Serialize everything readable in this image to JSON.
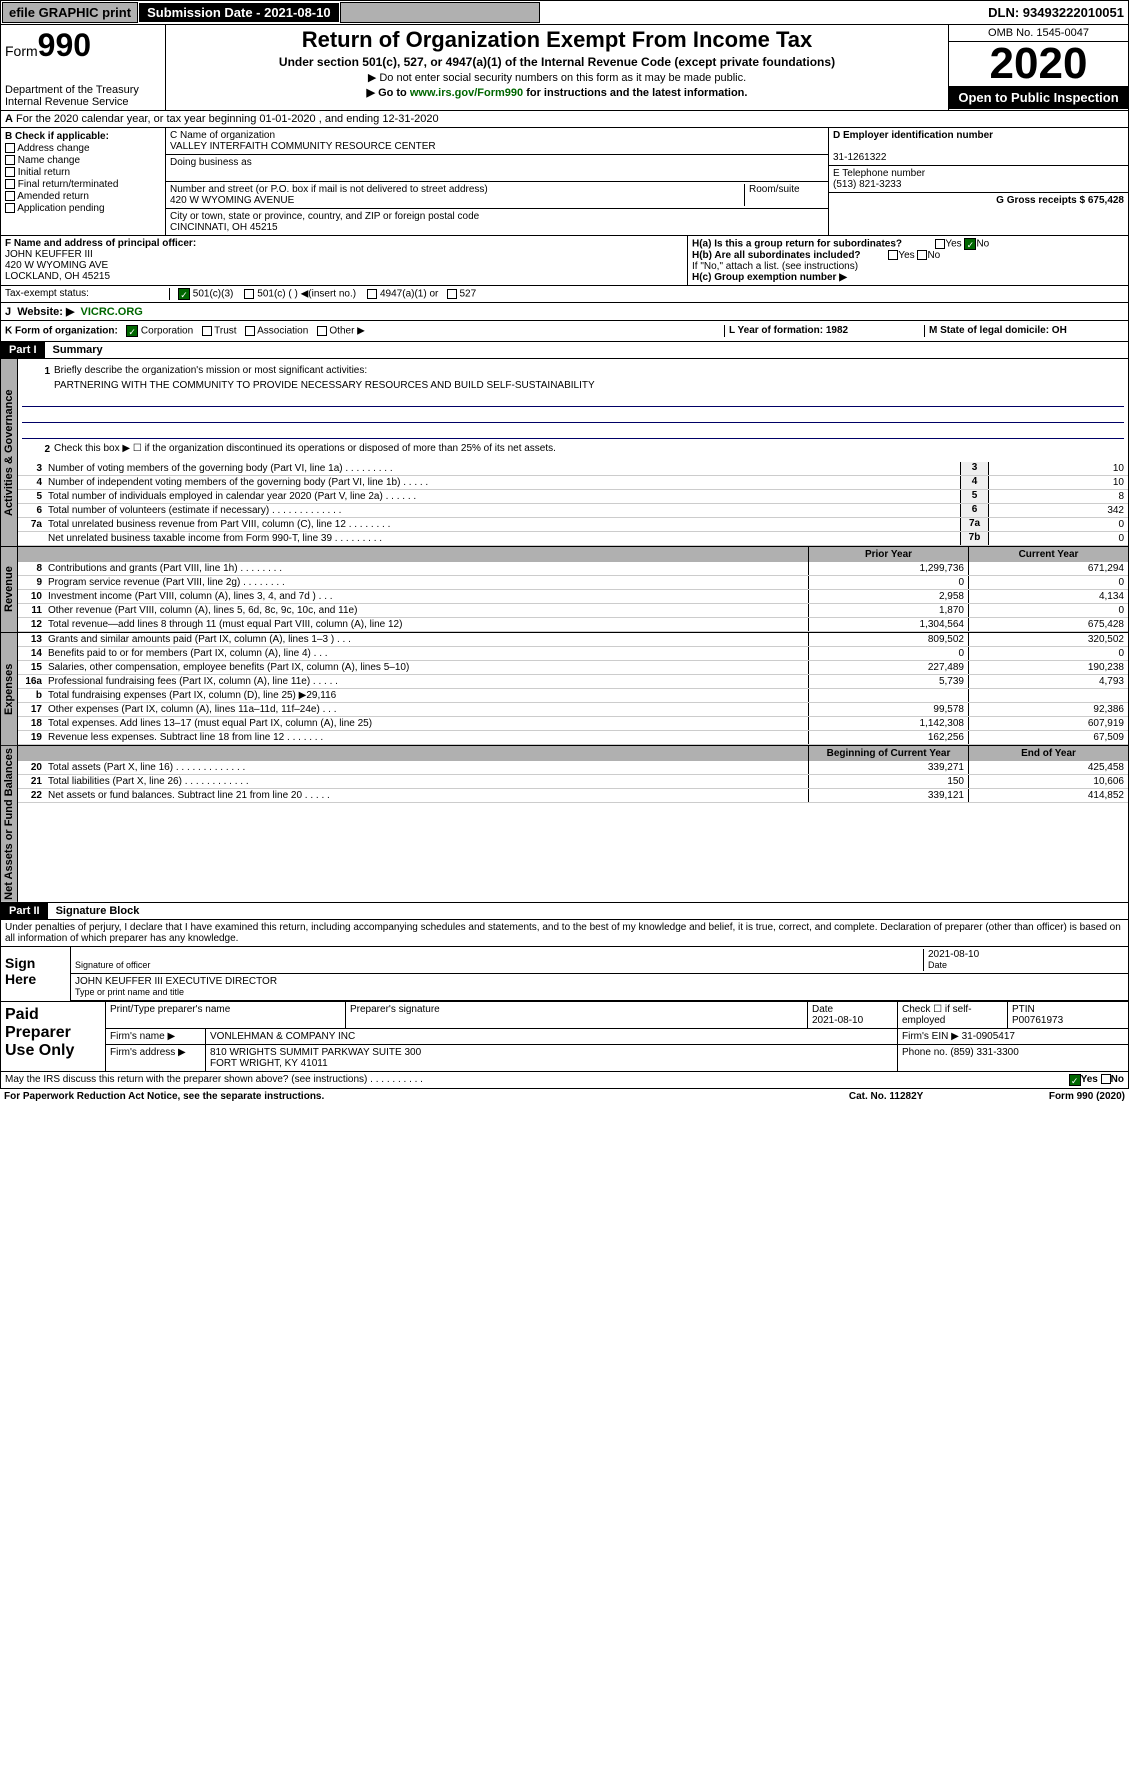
{
  "topbar": {
    "efile": "efile GRAPHIC print",
    "subdate_label": "Submission Date - 2021-08-10",
    "dln": "DLN: 93493222010051"
  },
  "header": {
    "form_label": "Form",
    "form_no": "990",
    "dept": "Department of the Treasury Internal Revenue Service",
    "title": "Return of Organization Exempt From Income Tax",
    "sub": "Under section 501(c), 527, or 4947(a)(1) of the Internal Revenue Code (except private foundations)",
    "note1": "▶ Do not enter social security numbers on this form as it may be made public.",
    "note2_pre": "▶ Go to ",
    "note2_link": "www.irs.gov/Form990",
    "note2_post": " for instructions and the latest information.",
    "omb": "OMB No. 1545-0047",
    "year": "2020",
    "open": "Open to Public Inspection"
  },
  "rowA": "For the 2020 calendar year, or tax year beginning 01-01-2020   , and ending 12-31-2020",
  "colB": {
    "label": "B Check if applicable:",
    "opts": [
      "Address change",
      "Name change",
      "Initial return",
      "Final return/terminated",
      "Amended return",
      "Application pending"
    ]
  },
  "colC": {
    "name_lbl": "C Name of organization",
    "name": "VALLEY INTERFAITH COMMUNITY RESOURCE CENTER",
    "dba_lbl": "Doing business as",
    "addr_lbl": "Number and street (or P.O. box if mail is not delivered to street address)",
    "room_lbl": "Room/suite",
    "addr": "420 W WYOMING AVENUE",
    "city_lbl": "City or town, state or province, country, and ZIP or foreign postal code",
    "city": "CINCINNATI, OH  45215"
  },
  "colDE": {
    "d_lbl": "D Employer identification number",
    "ein": "31-1261322",
    "e_lbl": "E Telephone number",
    "phone": "(513) 821-3233",
    "g_lbl": "G Gross receipts $ 675,428"
  },
  "rowF": {
    "lbl": "F  Name and address of principal officer:",
    "l1": "JOHN KEUFFER III",
    "l2": "420 W WYOMING AVE",
    "l3": "LOCKLAND, OH  45215"
  },
  "rowH": {
    "ha": "H(a)  Is this a group return for subordinates?",
    "hb": "H(b)  Are all subordinates included?",
    "hnote": "If \"No,\" attach a list. (see instructions)",
    "hc": "H(c)  Group exemption number ▶"
  },
  "rowI": {
    "lbl": "Tax-exempt status:",
    "o1": "501(c)(3)",
    "o2": "501(c) (  ) ◀(insert no.)",
    "o3": "4947(a)(1) or",
    "o4": "527"
  },
  "rowJ": {
    "lbl": "Website: ▶",
    "val": "VICRC.ORG"
  },
  "rowK": {
    "lbl": "K Form of organization:",
    "corp": "Corporation",
    "trust": "Trust",
    "assoc": "Association",
    "other": "Other ▶"
  },
  "rowL": "L Year of formation: 1982",
  "rowM": "M State of legal domicile: OH",
  "part1": {
    "hdr": "Part I",
    "title": "Summary",
    "l1_lbl": "Briefly describe the organization's mission or most significant activities:",
    "l1_txt": "PARTNERING WITH THE COMMUNITY TO PROVIDE NECESSARY RESOURCES AND BUILD SELF-SUSTAINABILITY",
    "l2": "Check this box ▶ ☐  if the organization discontinued its operations or disposed of more than 25% of its net assets.",
    "lines_gov": [
      {
        "n": "3",
        "t": "Number of voting members of the governing body (Part VI, line 1a)  .  .  .  .  .  .  .  .  .",
        "b": "3",
        "v": "10"
      },
      {
        "n": "4",
        "t": "Number of independent voting members of the governing body (Part VI, line 1b)  .  .  .  .  .",
        "b": "4",
        "v": "10"
      },
      {
        "n": "5",
        "t": "Total number of individuals employed in calendar year 2020 (Part V, line 2a)  .  .  .  .  .  .",
        "b": "5",
        "v": "8"
      },
      {
        "n": "6",
        "t": "Total number of volunteers (estimate if necessary)  .  .  .  .  .  .  .  .  .  .  .  .  .",
        "b": "6",
        "v": "342"
      },
      {
        "n": "7a",
        "t": "Total unrelated business revenue from Part VIII, column (C), line 12  .  .  .  .  .  .  .  .",
        "b": "7a",
        "v": "0"
      },
      {
        "n": "",
        "t": "Net unrelated business taxable income from Form 990-T, line 39  .  .  .  .  .  .  .  .  .",
        "b": "7b",
        "v": "0"
      }
    ],
    "py_hdr": "Prior Year",
    "cy_hdr": "Current Year",
    "rev": [
      {
        "n": "8",
        "t": "Contributions and grants (Part VIII, line 1h)  .  .  .  .  .  .  .  .",
        "p": "1,299,736",
        "c": "671,294"
      },
      {
        "n": "9",
        "t": "Program service revenue (Part VIII, line 2g)  .  .  .  .  .  .  .  .",
        "p": "0",
        "c": "0"
      },
      {
        "n": "10",
        "t": "Investment income (Part VIII, column (A), lines 3, 4, and 7d )  .  .  .",
        "p": "2,958",
        "c": "4,134"
      },
      {
        "n": "11",
        "t": "Other revenue (Part VIII, column (A), lines 5, 6d, 8c, 9c, 10c, and 11e)",
        "p": "1,870",
        "c": "0"
      },
      {
        "n": "12",
        "t": "Total revenue—add lines 8 through 11 (must equal Part VIII, column (A), line 12)",
        "p": "1,304,564",
        "c": "675,428"
      }
    ],
    "exp": [
      {
        "n": "13",
        "t": "Grants and similar amounts paid (Part IX, column (A), lines 1–3 )  .  .  .",
        "p": "809,502",
        "c": "320,502"
      },
      {
        "n": "14",
        "t": "Benefits paid to or for members (Part IX, column (A), line 4)  .  .  .",
        "p": "0",
        "c": "0"
      },
      {
        "n": "15",
        "t": "Salaries, other compensation, employee benefits (Part IX, column (A), lines 5–10)",
        "p": "227,489",
        "c": "190,238"
      },
      {
        "n": "16a",
        "t": "Professional fundraising fees (Part IX, column (A), line 11e)  .  .  .  .  .",
        "p": "5,739",
        "c": "4,793"
      },
      {
        "n": "b",
        "t": "Total fundraising expenses (Part IX, column (D), line 25) ▶29,116",
        "p": "",
        "c": ""
      },
      {
        "n": "17",
        "t": "Other expenses (Part IX, column (A), lines 11a–11d, 11f–24e)  .  .  .",
        "p": "99,578",
        "c": "92,386"
      },
      {
        "n": "18",
        "t": "Total expenses. Add lines 13–17 (must equal Part IX, column (A), line 25)",
        "p": "1,142,308",
        "c": "607,919"
      },
      {
        "n": "19",
        "t": "Revenue less expenses. Subtract line 18 from line 12  .  .  .  .  .  .  .",
        "p": "162,256",
        "c": "67,509"
      }
    ],
    "by_hdr": "Beginning of Current Year",
    "ey_hdr": "End of Year",
    "net": [
      {
        "n": "20",
        "t": "Total assets (Part X, line 16)  .  .  .  .  .  .  .  .  .  .  .  .  .",
        "p": "339,271",
        "c": "425,458"
      },
      {
        "n": "21",
        "t": "Total liabilities (Part X, line 26)  .  .  .  .  .  .  .  .  .  .  .  .",
        "p": "150",
        "c": "10,606"
      },
      {
        "n": "22",
        "t": "Net assets or fund balances. Subtract line 21 from line 20  .  .  .  .  .",
        "p": "339,121",
        "c": "414,852"
      }
    ]
  },
  "part2": {
    "hdr": "Part II",
    "title": "Signature Block",
    "decl": "Under penalties of perjury, I declare that I have examined this return, including accompanying schedules and statements, and to the best of my knowledge and belief, it is true, correct, and complete. Declaration of preparer (other than officer) is based on all information of which preparer has any knowledge."
  },
  "sign": {
    "here": "Sign Here",
    "sig_lbl": "Signature of officer",
    "date": "2021-08-10",
    "date_lbl": "Date",
    "name": "JOHN KEUFFER III  EXECUTIVE DIRECTOR",
    "name_lbl": "Type or print name and title"
  },
  "prep": {
    "lbl": "Paid Preparer Use Only",
    "h1": "Print/Type preparer's name",
    "h2": "Preparer's signature",
    "h3": "Date",
    "h4": "Check ☐ if self-employed",
    "h5": "PTIN",
    "date": "2021-08-10",
    "ptin": "P00761973",
    "firm_lbl": "Firm's name    ▶",
    "firm": "VONLEHMAN & COMPANY INC",
    "ein_lbl": "Firm's EIN ▶",
    "ein": "31-0905417",
    "addr_lbl": "Firm's address ▶",
    "addr": "810 WRIGHTS SUMMIT PARKWAY SUITE 300\nFORT WRIGHT, KY  41011",
    "phone_lbl": "Phone no.",
    "phone": "(859) 331-3300"
  },
  "foot": {
    "q": "May the IRS discuss this return with the preparer shown above? (see instructions)  .  .  .  .  .  .  .  .  .  .",
    "yes": "Yes",
    "no": "No",
    "pra": "For Paperwork Reduction Act Notice, see the separate instructions.",
    "cat": "Cat. No. 11282Y",
    "form": "Form 990 (2020)"
  },
  "vtabs": {
    "gov": "Activities & Governance",
    "rev": "Revenue",
    "exp": "Expenses",
    "net": "Net Assets or Fund Balances"
  }
}
